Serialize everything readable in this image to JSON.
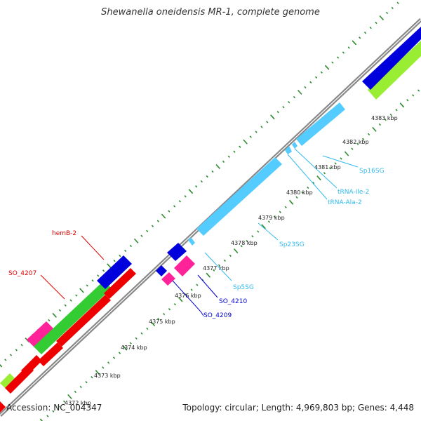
{
  "title": "Shewanella oneidensis MR-1, complete genome",
  "footer": {
    "accession": "Accession: NC_004347",
    "summary": "Topology: circular; Length: 4,969,803 bp; Genes: 4,448"
  },
  "ticks": {
    "unit": "kbp",
    "labels": [
      "4372 kbp",
      "4373 kbp",
      "4374 kbp",
      "4375 kbp",
      "4376 kbp",
      "4377 kbp",
      "4378 kbp",
      "4379 kbp",
      "4380 kbp",
      "4381 kbp",
      "4382 kbp",
      "4383 kbp"
    ]
  },
  "colors": {
    "backbone": "#888888",
    "ticks": "#2e8b2e",
    "cds_red": "#ee0000",
    "cds_green": "#33cc33",
    "cds_blue": "#0000dd",
    "cds_magenta": "#ff2299",
    "cds_lime": "#99ee33",
    "rna": "#55ccff"
  },
  "features": [
    {
      "name": "hemB-2",
      "color": "#ee0000",
      "label_color": "#dd0000"
    },
    {
      "name": "SO_4207",
      "color": "#ee0000",
      "label_color": "#dd0000"
    },
    {
      "name": "SO_4209",
      "color": "#0000dd",
      "label_color": "#0000cc"
    },
    {
      "name": "SO_4210",
      "color": "#0000dd",
      "label_color": "#0000cc"
    },
    {
      "name": "Sp5SG",
      "color": "#55ccff",
      "label_color": "#33bbee"
    },
    {
      "name": "Sp23SG",
      "color": "#55ccff",
      "label_color": "#33bbee"
    },
    {
      "name": "tRNA-Ala-2",
      "color": "#55ccff",
      "label_color": "#33bbee"
    },
    {
      "name": "tRNA-Ile-2",
      "color": "#55ccff",
      "label_color": "#33bbee"
    },
    {
      "name": "Sp16SG",
      "color": "#55ccff",
      "label_color": "#33bbee"
    }
  ]
}
